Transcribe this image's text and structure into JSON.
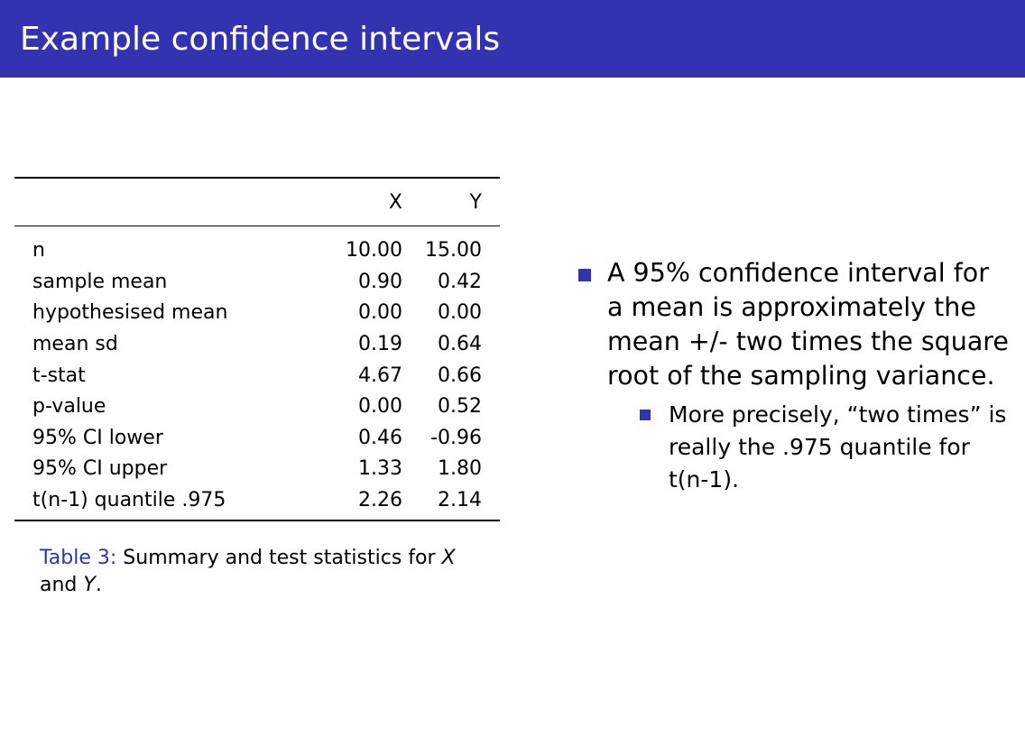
{
  "slide": {
    "title": "Example confidence intervals",
    "accent_color": "#3333b2"
  },
  "table": {
    "columns": [
      "",
      "X",
      "Y"
    ],
    "rows": [
      {
        "label": "n",
        "x": "10.00",
        "y": "15.00"
      },
      {
        "label": "sample mean",
        "x": "0.90",
        "y": "0.42"
      },
      {
        "label": "hypothesised mean",
        "x": "0.00",
        "y": "0.00"
      },
      {
        "label": "mean sd",
        "x": "0.19",
        "y": "0.64"
      },
      {
        "label": "t-stat",
        "x": "4.67",
        "y": "0.66"
      },
      {
        "label": "p-value",
        "x": "0.00",
        "y": "0.52"
      },
      {
        "label": "95% CI lower",
        "x": "0.46",
        "y": "-0.96"
      },
      {
        "label": "95% CI upper",
        "x": "1.33",
        "y": "1.80"
      },
      {
        "label": "t(n-1) quantile .975",
        "x": "2.26",
        "y": "2.14"
      }
    ]
  },
  "caption": {
    "label": "Table 3:",
    "text_before": "Summary and test statistics for",
    "var_x": "X",
    "text_and": "and",
    "var_y": "Y",
    "text_end": "."
  },
  "bullets": {
    "main": "A 95% confidence interval for a mean is approximately the mean +/- two times the square root of the sampling variance.",
    "sub": "More precisely, “two times” is really the .975 quantile for t(n-1)."
  }
}
